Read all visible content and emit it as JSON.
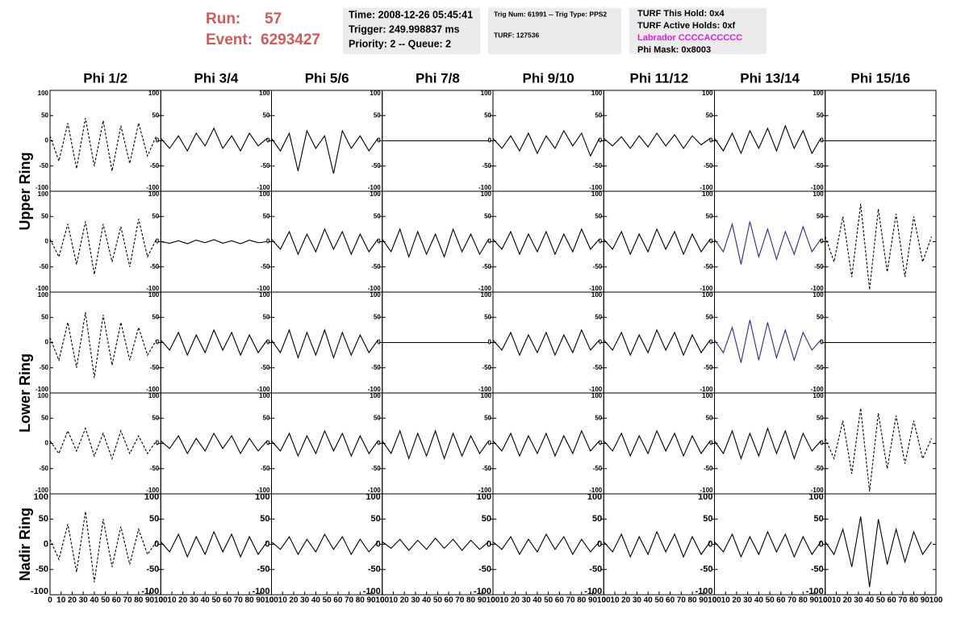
{
  "header": {
    "run_label": "Run:",
    "run": "57",
    "event_label": "Event:",
    "event": "6293427"
  },
  "info": [
    [
      "Time: 2008-12-26 05:45:41",
      "Trigger: 249.998837 ms",
      "Priority: 2 -- Queue: 2"
    ],
    [
      "Trig Num: 61991 -- Trig Type: PPS2",
      "TURF: 127536"
    ],
    [
      "TURF This Hold: 0x4",
      "TURF Active Holds: 0xf",
      "Labrador CCCCACCCCC",
      "Phi Mask: 0x8003"
    ]
  ],
  "columns": [
    "Phi 1/2",
    "Phi 3/4",
    "Phi 5/6",
    "Phi 7/8",
    "Phi 9/10",
    "Phi 11/12",
    "Phi 13/14",
    "Phi 15/16"
  ],
  "rows": [
    "Upper Ring",
    "Lower Ring",
    "Nadir Ring"
  ],
  "xlim": [
    0,
    100
  ],
  "xticks": [
    0,
    10,
    20,
    30,
    40,
    50,
    60,
    70,
    80,
    90,
    100
  ],
  "ylim": [
    -100,
    100
  ],
  "yticks": [
    -100,
    -50,
    0,
    50,
    100
  ],
  "x": [
    0,
    8,
    16,
    24,
    32,
    40,
    48,
    56,
    64,
    72,
    80,
    88,
    96
  ],
  "panels": [
    [
      {
        "color": "#000000",
        "dashed": true,
        "values": [
          10,
          -40,
          35,
          -55,
          45,
          -50,
          40,
          -60,
          30,
          -45,
          35,
          -30,
          10
        ]
      },
      {
        "color": "#000000",
        "dashed": false,
        "values": [
          5,
          -15,
          10,
          -20,
          15,
          -10,
          25,
          -15,
          10,
          -20,
          15,
          -10,
          5
        ]
      },
      {
        "color": "#000000",
        "dashed": false,
        "values": [
          5,
          -20,
          15,
          -60,
          20,
          -15,
          10,
          -65,
          20,
          -15,
          10,
          -20,
          5
        ]
      },
      {
        "color": "#000000",
        "dashed": false,
        "values": [
          0,
          0,
          0,
          0,
          0,
          0,
          0,
          0,
          0,
          0,
          0,
          0,
          0
        ]
      },
      {
        "color": "#000000",
        "dashed": false,
        "values": [
          5,
          -15,
          10,
          -20,
          15,
          -25,
          10,
          -15,
          20,
          -10,
          15,
          -30,
          5
        ]
      },
      {
        "color": "#000000",
        "dashed": false,
        "values": [
          5,
          -10,
          8,
          -15,
          10,
          -12,
          15,
          -10,
          12,
          -15,
          10,
          -8,
          5
        ]
      },
      {
        "color": "#000000",
        "dashed": false,
        "values": [
          5,
          -20,
          15,
          -25,
          20,
          -15,
          25,
          -20,
          30,
          -15,
          20,
          -25,
          5
        ]
      },
      {
        "color": "#000000",
        "dashed": false,
        "values": [
          0,
          0,
          0,
          0,
          0,
          0,
          0,
          0,
          0,
          0,
          0,
          0,
          0
        ]
      }
    ],
    [
      {
        "color": "#000000",
        "dashed": true,
        "values": [
          5,
          -30,
          35,
          -45,
          40,
          -65,
          35,
          -40,
          30,
          -50,
          45,
          -30,
          5
        ]
      },
      {
        "color": "#000000",
        "dashed": false,
        "values": [
          0,
          -3,
          2,
          -4,
          3,
          -2,
          4,
          -3,
          2,
          -4,
          3,
          -2,
          0
        ]
      },
      {
        "color": "#000000",
        "dashed": false,
        "values": [
          5,
          -15,
          20,
          -25,
          15,
          -20,
          25,
          -15,
          20,
          -25,
          15,
          -20,
          5
        ]
      },
      {
        "color": "#000000",
        "dashed": false,
        "values": [
          5,
          -20,
          25,
          -30,
          20,
          -25,
          15,
          -30,
          25,
          -20,
          15,
          -25,
          5
        ]
      },
      {
        "color": "#000000",
        "dashed": false,
        "values": [
          5,
          -15,
          20,
          -25,
          15,
          -20,
          20,
          -25,
          15,
          -20,
          25,
          -15,
          5
        ]
      },
      {
        "color": "#000000",
        "dashed": false,
        "values": [
          5,
          -15,
          20,
          -25,
          15,
          -20,
          25,
          -15,
          20,
          -25,
          15,
          -20,
          5
        ]
      },
      {
        "color": "#2c2c8c",
        "dashed": false,
        "values": [
          5,
          -20,
          35,
          -45,
          40,
          -30,
          25,
          -35,
          20,
          -25,
          30,
          -20,
          5
        ]
      },
      {
        "color": "#000000",
        "dashed": true,
        "values": [
          10,
          -40,
          50,
          -70,
          75,
          -95,
          65,
          -60,
          55,
          -70,
          50,
          -40,
          10
        ]
      }
    ],
    [
      {
        "color": "#000000",
        "dashed": true,
        "values": [
          10,
          -35,
          40,
          -50,
          60,
          -70,
          55,
          -45,
          40,
          -35,
          30,
          -25,
          5
        ]
      },
      {
        "color": "#000000",
        "dashed": false,
        "values": [
          5,
          -15,
          20,
          -25,
          15,
          -20,
          25,
          -15,
          20,
          -25,
          15,
          -20,
          5
        ]
      },
      {
        "color": "#000000",
        "dashed": false,
        "values": [
          5,
          -20,
          25,
          -30,
          20,
          -25,
          25,
          -30,
          20,
          -25,
          15,
          -20,
          5
        ]
      },
      {
        "color": "#000000",
        "dashed": false,
        "values": [
          0,
          0,
          0,
          0,
          0,
          0,
          0,
          0,
          0,
          0,
          0,
          0,
          0
        ]
      },
      {
        "color": "#000000",
        "dashed": false,
        "values": [
          5,
          -15,
          20,
          -25,
          15,
          -20,
          20,
          -25,
          15,
          -20,
          25,
          -15,
          5
        ]
      },
      {
        "color": "#000000",
        "dashed": false,
        "values": [
          5,
          -15,
          20,
          -25,
          15,
          -20,
          25,
          -15,
          20,
          -25,
          15,
          -20,
          5
        ]
      },
      {
        "color": "#2c2c8c",
        "dashed": false,
        "values": [
          5,
          -20,
          30,
          -40,
          45,
          -35,
          40,
          -30,
          25,
          -35,
          20,
          -15,
          5
        ]
      },
      {
        "color": "#000000",
        "dashed": false,
        "values": [
          0,
          0,
          0,
          0,
          0,
          0,
          0,
          0,
          0,
          0,
          0,
          0,
          0
        ]
      }
    ],
    [
      {
        "color": "#000000",
        "dashed": true,
        "values": [
          5,
          -20,
          25,
          -15,
          30,
          -25,
          20,
          -30,
          25,
          -20,
          15,
          -20,
          5
        ]
      },
      {
        "color": "#000000",
        "dashed": false,
        "values": [
          5,
          -10,
          15,
          -20,
          10,
          -15,
          20,
          -10,
          15,
          -20,
          10,
          -15,
          5
        ]
      },
      {
        "color": "#000000",
        "dashed": false,
        "values": [
          5,
          -15,
          20,
          -25,
          15,
          -20,
          25,
          -15,
          20,
          -25,
          15,
          -20,
          5
        ]
      },
      {
        "color": "#000000",
        "dashed": false,
        "values": [
          5,
          -20,
          25,
          -30,
          20,
          -25,
          25,
          -30,
          20,
          -25,
          15,
          -20,
          5
        ]
      },
      {
        "color": "#000000",
        "dashed": false,
        "values": [
          5,
          -15,
          20,
          -25,
          15,
          -20,
          20,
          -25,
          15,
          -20,
          25,
          -15,
          5
        ]
      },
      {
        "color": "#000000",
        "dashed": false,
        "values": [
          5,
          -15,
          20,
          -25,
          15,
          -20,
          25,
          -15,
          20,
          -25,
          15,
          -20,
          5
        ]
      },
      {
        "color": "#000000",
        "dashed": false,
        "values": [
          5,
          -20,
          25,
          -30,
          20,
          -25,
          30,
          -20,
          25,
          -30,
          20,
          -15,
          5
        ]
      },
      {
        "color": "#000000",
        "dashed": true,
        "values": [
          10,
          -30,
          45,
          -60,
          70,
          -95,
          60,
          -50,
          55,
          -40,
          45,
          -30,
          10
        ]
      }
    ],
    [
      {
        "color": "#000000",
        "dashed": true,
        "values": [
          10,
          -30,
          40,
          -55,
          65,
          -75,
          50,
          -45,
          35,
          -40,
          30,
          -20,
          5
        ]
      },
      {
        "color": "#000000",
        "dashed": false,
        "values": [
          5,
          -15,
          20,
          -25,
          15,
          -20,
          25,
          -15,
          20,
          -25,
          15,
          -20,
          5
        ]
      },
      {
        "color": "#000000",
        "dashed": false,
        "values": [
          5,
          -10,
          15,
          -20,
          10,
          -15,
          20,
          -10,
          15,
          -20,
          10,
          -15,
          5
        ]
      },
      {
        "color": "#000000",
        "dashed": false,
        "values": [
          5,
          -8,
          10,
          -12,
          8,
          -10,
          12,
          -8,
          10,
          -12,
          8,
          -10,
          5
        ]
      },
      {
        "color": "#000000",
        "dashed": false,
        "values": [
          5,
          -10,
          15,
          -20,
          10,
          -15,
          20,
          -10,
          15,
          -20,
          10,
          -15,
          5
        ]
      },
      {
        "color": "#000000",
        "dashed": false,
        "values": [
          5,
          -15,
          20,
          -25,
          15,
          -20,
          25,
          -15,
          20,
          -25,
          15,
          -20,
          5
        ]
      },
      {
        "color": "#000000",
        "dashed": false,
        "values": [
          5,
          -15,
          20,
          -25,
          15,
          -20,
          25,
          -15,
          20,
          -25,
          15,
          -20,
          5
        ]
      },
      {
        "color": "#000000",
        "dashed": false,
        "values": [
          5,
          -20,
          30,
          -45,
          55,
          -85,
          50,
          -40,
          30,
          -35,
          25,
          -20,
          5
        ]
      }
    ]
  ]
}
